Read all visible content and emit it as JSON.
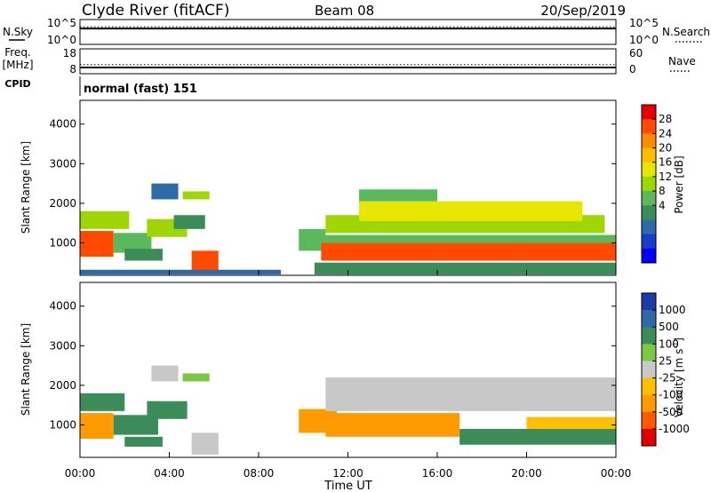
{
  "header": {
    "station": "Clyde River (fitACF)",
    "beam": "Beam 08",
    "date": "20/Sep/2019"
  },
  "side_labels": {
    "nsky": "N.Sky",
    "freq_line1": "Freq.",
    "freq_line2": "[MHz]",
    "cpid": "CPID",
    "nsearch": "N.Search",
    "nave": "Nave"
  },
  "cpid_text": "normal (fast) 151",
  "colorbars": {
    "power": {
      "label": "Power [dB]",
      "ticks": [
        "28",
        "24",
        "20",
        "16",
        "12",
        "8",
        "4"
      ],
      "colors": [
        "#e60000",
        "#ff4a00",
        "#ff8c00",
        "#ffbf00",
        "#e6e600",
        "#9dd600",
        "#5cb85c",
        "#3c8c5a",
        "#2e6aa6",
        "#1a3ccc",
        "#0000ff"
      ]
    },
    "velocity": {
      "label_text": "Velocity [m s",
      "label_sup": "-1",
      "label_close": "]",
      "ticks": [
        "1000",
        "500",
        "100",
        "25",
        "-25",
        "-100",
        "-500",
        "-1000"
      ],
      "colors": [
        "#1a3ca8",
        "#2f6aa8",
        "#3c8c5a",
        "#7ac943",
        "#c8c8c8",
        "#ffc000",
        "#ff9a00",
        "#ff5a00",
        "#e00000"
      ]
    }
  },
  "chart_data": [
    {
      "type": "line",
      "panel": "noise",
      "left_axis_label": "N.Sky",
      "left_ticks": [
        "10^5",
        "10^0"
      ],
      "right_axis_label": "N.Search",
      "right_ticks": [
        "10^5",
        "10^0"
      ],
      "ylim_log10": [
        0,
        5
      ],
      "baseline_log10": 3.2
    },
    {
      "type": "line",
      "panel": "frequency",
      "left_axis_label": "Freq. [MHz]",
      "left_ticks": [
        "18",
        "8"
      ],
      "ylim": [
        8,
        18
      ],
      "freq_mhz": 10.5,
      "right_axis_label": "Nave",
      "right_ticks": [
        "60",
        "0"
      ],
      "right_ylim": [
        0,
        60
      ],
      "nave": 22
    },
    {
      "type": "heatmap",
      "panel": "power",
      "ylabel": "Slant Range [km]",
      "yticks": [
        "4000",
        "3000",
        "2000",
        "1000"
      ],
      "ylim": [
        180,
        4600
      ],
      "xlim_hours": [
        0,
        24
      ],
      "colorbar_label": "Power [dB]",
      "colorbar_range": [
        0,
        30
      ],
      "bands": [
        {
          "t0": 0.0,
          "t1": 1.5,
          "r0": 650,
          "r1": 1300,
          "value": 27
        },
        {
          "t0": 0.0,
          "t1": 2.2,
          "r0": 1350,
          "r1": 1800,
          "value": 14
        },
        {
          "t0": 1.5,
          "t1": 3.2,
          "r0": 750,
          "r1": 1250,
          "value": 13
        },
        {
          "t0": 2.0,
          "t1": 3.7,
          "r0": 550,
          "r1": 850,
          "value": 9
        },
        {
          "t0": 3.0,
          "t1": 4.8,
          "r0": 1150,
          "r1": 1600,
          "value": 16
        },
        {
          "t0": 3.2,
          "t1": 4.4,
          "r0": 2100,
          "r1": 2500,
          "value": 7
        },
        {
          "t0": 4.2,
          "t1": 5.6,
          "r0": 1350,
          "r1": 1700,
          "value": 9
        },
        {
          "t0": 4.6,
          "t1": 5.8,
          "r0": 2100,
          "r1": 2300,
          "value": 16
        },
        {
          "t0": 5.0,
          "t1": 6.2,
          "r0": 250,
          "r1": 800,
          "value": 27
        },
        {
          "t0": 0.0,
          "t1": 9.0,
          "r0": 200,
          "r1": 320,
          "value": 6
        },
        {
          "t0": 9.8,
          "t1": 11.0,
          "r0": 800,
          "r1": 1350,
          "value": 12
        },
        {
          "t0": 10.8,
          "t1": 24.0,
          "r0": 550,
          "r1": 1000,
          "value": 27
        },
        {
          "t0": 10.8,
          "t1": 24.0,
          "r0": 1000,
          "r1": 1200,
          "value": 12
        },
        {
          "t0": 11.0,
          "t1": 23.5,
          "r0": 1250,
          "r1": 1700,
          "value": 14
        },
        {
          "t0": 12.5,
          "t1": 22.5,
          "r0": 1550,
          "r1": 2050,
          "value": 17
        },
        {
          "t0": 12.5,
          "t1": 16.0,
          "r0": 2050,
          "r1": 2350,
          "value": 12
        },
        {
          "t0": 10.5,
          "t1": 24.0,
          "r0": 200,
          "r1": 500,
          "value": 10
        }
      ]
    },
    {
      "type": "heatmap",
      "panel": "velocity",
      "ylabel": "Slant Range [km]",
      "yticks": [
        "4000",
        "3000",
        "2000",
        "1000"
      ],
      "ylim": [
        180,
        4600
      ],
      "xlim_hours": [
        0,
        24
      ],
      "xticks": [
        "00:00",
        "04:00",
        "08:00",
        "12:00",
        "16:00",
        "20:00",
        "00:00"
      ],
      "xlabel": "Time UT",
      "colorbar_label": "Velocity [m s-1]",
      "colorbar_range": [
        -1000,
        1000
      ],
      "bands": [
        {
          "t0": 0.0,
          "t1": 1.5,
          "r0": 650,
          "r1": 1300,
          "value": -300
        },
        {
          "t0": 0.0,
          "t1": 2.0,
          "r0": 1350,
          "r1": 1800,
          "value": 200
        },
        {
          "t0": 1.5,
          "t1": 3.5,
          "r0": 750,
          "r1": 1250,
          "value": 250
        },
        {
          "t0": 2.0,
          "t1": 3.7,
          "r0": 450,
          "r1": 700,
          "value": 250
        },
        {
          "t0": 3.0,
          "t1": 4.8,
          "r0": 1150,
          "r1": 1600,
          "value": 300
        },
        {
          "t0": 3.2,
          "t1": 4.4,
          "r0": 2100,
          "r1": 2500,
          "value": 0
        },
        {
          "t0": 4.6,
          "t1": 5.8,
          "r0": 2100,
          "r1": 2300,
          "value": 60
        },
        {
          "t0": 5.0,
          "t1": 6.2,
          "r0": 250,
          "r1": 800,
          "value": 0
        },
        {
          "t0": 9.8,
          "t1": 11.5,
          "r0": 800,
          "r1": 1400,
          "value": -300
        },
        {
          "t0": 11.0,
          "t1": 17.0,
          "r0": 700,
          "r1": 1300,
          "value": -250
        },
        {
          "t0": 17.0,
          "t1": 24.0,
          "r0": 500,
          "r1": 900,
          "value": 250
        },
        {
          "t0": 11.0,
          "t1": 24.0,
          "r0": 1350,
          "r1": 2200,
          "value": 0
        },
        {
          "t0": 20.0,
          "t1": 24.0,
          "r0": 900,
          "r1": 1200,
          "value": -80
        }
      ]
    }
  ]
}
